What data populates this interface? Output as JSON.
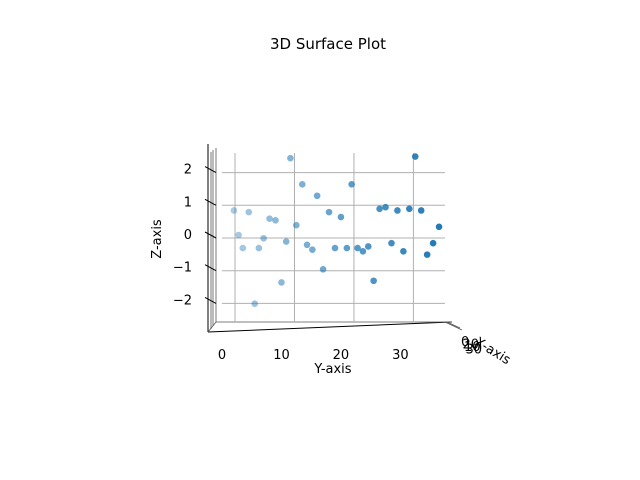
{
  "chart_data": {
    "type": "scatter",
    "title": "3D Surface Plot",
    "xlabel": "X-axis",
    "ylabel": "Y-axis",
    "zlabel": "Z-axis",
    "view": "side (elevation 0, looking along X)",
    "y_ticks": [
      "0",
      "10",
      "20",
      "30"
    ],
    "z_ticks": [
      "2",
      "1",
      "0",
      "−1",
      "−2"
    ],
    "x_ticks": [
      "0",
      "20",
      "10",
      "30"
    ],
    "ylim": [
      -2.5,
      37.5
    ],
    "zlim": [
      -2.6,
      2.6
    ],
    "grid": true,
    "marker_color": "#1f77b4",
    "points": [
      {
        "y": 2.0,
        "z": 0.75
      },
      {
        "y": 2.8,
        "z": 0.0
      },
      {
        "y": 3.5,
        "z": -0.4
      },
      {
        "y": 4.5,
        "z": 0.7
      },
      {
        "y": 5.5,
        "z": -2.1
      },
      {
        "y": 6.2,
        "z": -0.4
      },
      {
        "y": 7.0,
        "z": -0.1
      },
      {
        "y": 8.0,
        "z": 0.5
      },
      {
        "y": 9.0,
        "z": 0.45
      },
      {
        "y": 10.0,
        "z": -1.45
      },
      {
        "y": 10.8,
        "z": -0.2
      },
      {
        "y": 11.5,
        "z": 2.35
      },
      {
        "y": 12.5,
        "z": 0.3
      },
      {
        "y": 13.5,
        "z": 1.55
      },
      {
        "y": 14.3,
        "z": -0.3
      },
      {
        "y": 15.2,
        "z": -0.45
      },
      {
        "y": 16.0,
        "z": 1.2
      },
      {
        "y": 17.0,
        "z": -1.05
      },
      {
        "y": 18.0,
        "z": 0.7
      },
      {
        "y": 19.0,
        "z": -0.4
      },
      {
        "y": 20.0,
        "z": 0.55
      },
      {
        "y": 21.0,
        "z": -0.4
      },
      {
        "y": 21.8,
        "z": 1.55
      },
      {
        "y": 22.8,
        "z": -0.4
      },
      {
        "y": 23.7,
        "z": -0.5
      },
      {
        "y": 24.6,
        "z": -0.35
      },
      {
        "y": 25.5,
        "z": -1.4
      },
      {
        "y": 26.5,
        "z": 0.8
      },
      {
        "y": 27.5,
        "z": 0.85
      },
      {
        "y": 28.5,
        "z": -0.25
      },
      {
        "y": 29.5,
        "z": 0.75
      },
      {
        "y": 30.5,
        "z": -0.5
      },
      {
        "y": 31.5,
        "z": 0.8
      },
      {
        "y": 32.5,
        "z": 2.4
      },
      {
        "y": 33.5,
        "z": 0.75
      },
      {
        "y": 34.5,
        "z": -0.6
      },
      {
        "y": 35.5,
        "z": -0.25
      },
      {
        "y": 36.5,
        "z": 0.25
      }
    ]
  }
}
